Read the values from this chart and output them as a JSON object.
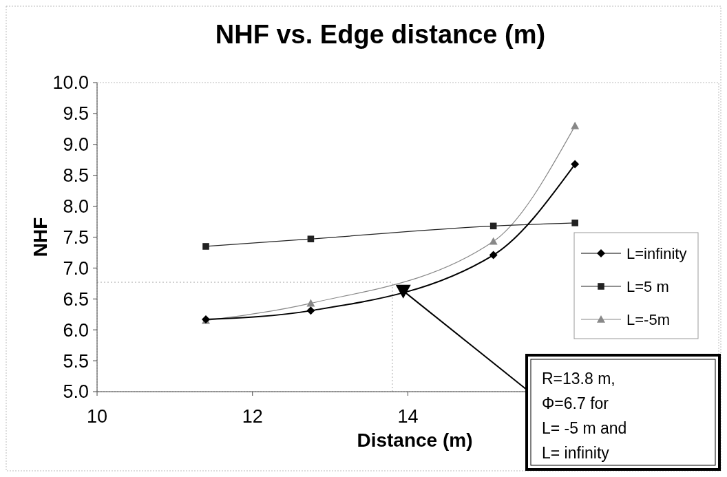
{
  "chart_data": {
    "type": "line",
    "title": "NHF  vs. Edge distance (m)",
    "xlabel": "Distance (m)",
    "ylabel": "NHF",
    "x": [
      11.4,
      12.75,
      15.1,
      16.15
    ],
    "series": [
      {
        "name": "L=infinity",
        "color": "#000000",
        "marker": "diamond",
        "values": [
          6.17,
          6.31,
          7.21,
          8.68
        ]
      },
      {
        "name": "L=5 m",
        "color": "#222222",
        "marker": "square",
        "values": [
          7.35,
          7.47,
          7.68,
          7.73
        ]
      },
      {
        "name": "L=-5m",
        "color": "#888888",
        "marker": "triangle",
        "values": [
          6.15,
          6.43,
          7.43,
          9.3
        ]
      },
      {
        "type": "scatter",
        "color": "#000000",
        "marker": "triangle",
        "x": [
          13.94
        ],
        "values": [
          6.63
        ]
      }
    ],
    "xlim": [
      10,
      18
    ],
    "xticks": [
      10,
      12,
      14
    ],
    "ylim": [
      5,
      10
    ],
    "yticks": [
      {
        "value": 5,
        "label": "5.0"
      },
      {
        "value": 5.5,
        "label": "5.5"
      },
      {
        "value": 6,
        "label": "6.0"
      },
      {
        "value": 6.5,
        "label": "6.5"
      },
      {
        "value": 7,
        "label": "7.0"
      },
      {
        "value": 7.5,
        "label": "7.5"
      },
      {
        "value": 8,
        "label": "8.0"
      },
      {
        "value": 8.5,
        "label": "8.5"
      },
      {
        "value": 9,
        "label": "9.0"
      },
      {
        "value": 9.5,
        "label": "9.5"
      },
      {
        "value": 10,
        "label": "10.0"
      }
    ],
    "ref_lines": [
      {
        "axis": "y",
        "value": 6.77,
        "color": "#aaaaaa",
        "line_style": "dotted"
      },
      {
        "axis": "x",
        "value": 13.8,
        "color": "#aaaaaa",
        "line_style": "dotted"
      }
    ],
    "annotations": [
      {
        "text": "R=13.8 m,\nΦ=6.7 for\nL= -5 m and\nL= infinity",
        "x": 13.94,
        "y": 6.63
      }
    ],
    "legend": "right",
    "grid": false
  }
}
